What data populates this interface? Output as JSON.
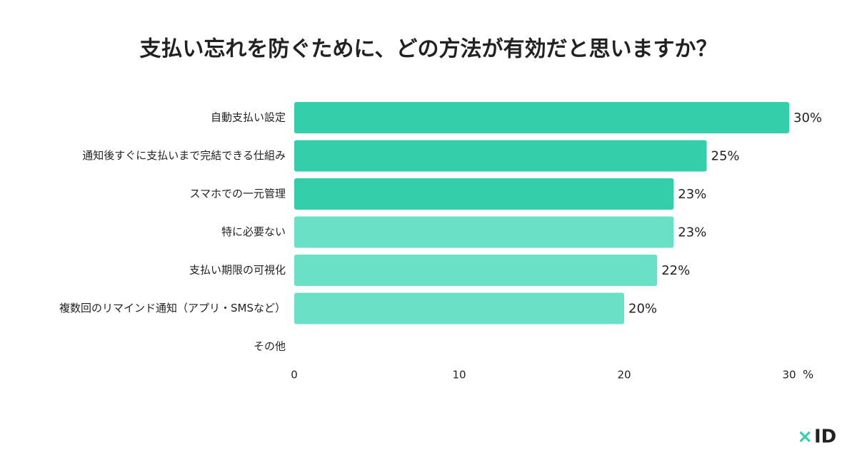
{
  "chart_data": {
    "type": "hbar",
    "title": "支払い忘れを防ぐために、どの方法が有効だと思いますか？",
    "categories": [
      "自動支払い設定",
      "通知後すぐに支払いまで完結できる仕組み",
      "スマホでの一元管理",
      "特に必要ない",
      "支払い期限の可視化",
      "複数回のリマインド通知（アプリ・SMSなど）",
      "その他"
    ],
    "values": [
      30,
      25,
      23,
      23,
      22,
      20,
      null
    ],
    "value_labels": [
      "30%",
      "25%",
      "23%",
      "23%",
      "22%",
      "20%",
      null
    ],
    "colors": [
      "#34cfaa",
      "#34cfaa",
      "#34cfaa",
      "#6ae0c6",
      "#6ae0c6",
      "#6ae0c6",
      "#6ae0c6"
    ],
    "xlim": [
      0,
      30
    ],
    "xticks": [
      0,
      10,
      20,
      30
    ],
    "xlabel": "%",
    "logo_mark": "×",
    "logo_text": "ID"
  }
}
